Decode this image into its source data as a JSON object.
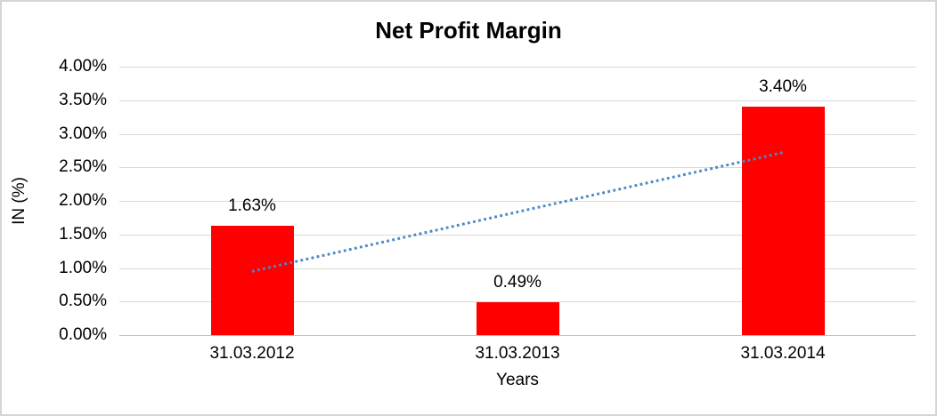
{
  "window": {
    "background": "#ffffff",
    "border_color": "#d5d5d5"
  },
  "chart_data": {
    "type": "bar",
    "title": "Net Profit Margin",
    "categories": [
      "31.03.2012",
      "31.03.2013",
      "31.03.2014"
    ],
    "values": [
      1.63,
      0.49,
      3.4
    ],
    "data_labels": [
      "1.63%",
      "0.49%",
      "3.40%"
    ],
    "xlabel": "Years",
    "ylabel": "IN (%)",
    "ylim": [
      0,
      4
    ],
    "ytick_step": 0.5,
    "ytick_labels": [
      "0.00%",
      "0.50%",
      "1.00%",
      "1.50%",
      "2.00%",
      "2.50%",
      "3.00%",
      "3.50%",
      "4.00%"
    ],
    "grid": true,
    "legend": "none",
    "bar_color": "#ff0000",
    "gridline_color": "#d9d9d9",
    "axis_line_color": "#bfbfbf",
    "label_color": "#000000",
    "trendline": {
      "type": "linear",
      "style": "dotted",
      "color": "#4d86c6",
      "start_value": 0.95,
      "end_value": 2.72
    }
  }
}
